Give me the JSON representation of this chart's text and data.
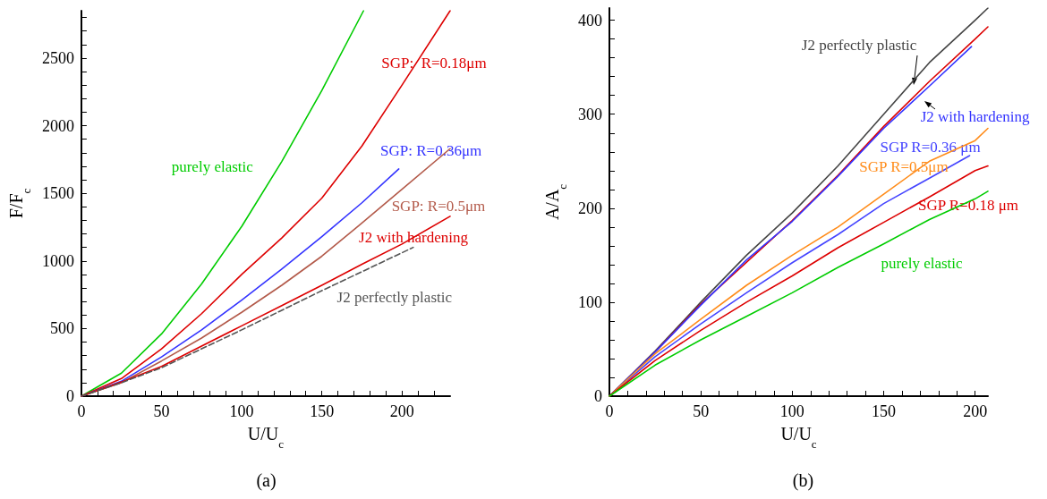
{
  "chart_data": [
    {
      "type": "line",
      "title": "(a)",
      "xlabel": "U/U$_{c}$",
      "ylabel": "F/F$_{c}$",
      "xlim": [
        0,
        230
      ],
      "ylim": [
        0,
        2850
      ],
      "xticks": [
        0,
        {
          "value": 10,
          "label": null
        },
        {
          "value": 20,
          "label": null
        },
        {
          "value": 30,
          "label": null
        },
        {
          "value": 40,
          "label": null
        },
        50,
        {
          "value": 60,
          "label": null
        },
        {
          "value": 70,
          "label": null
        },
        {
          "value": 80,
          "label": null
        },
        {
          "value": 90,
          "label": null
        },
        100,
        {
          "value": 110,
          "label": null
        },
        {
          "value": 120,
          "label": null
        },
        {
          "value": 130,
          "label": null
        },
        {
          "value": 140,
          "label": null
        },
        150,
        {
          "value": 160,
          "label": null
        },
        {
          "value": 170,
          "label": null
        },
        {
          "value": 180,
          "label": null
        },
        {
          "value": 190,
          "label": null
        },
        200,
        {
          "value": 210,
          "label": null
        },
        {
          "value": 220,
          "label": null
        }
      ],
      "yticks": [
        0,
        {
          "value": 100,
          "label": null
        },
        {
          "value": 200,
          "label": null
        },
        {
          "value": 300,
          "label": null
        },
        {
          "value": 400,
          "label": null
        },
        500,
        {
          "value": 600,
          "label": null
        },
        {
          "value": 700,
          "label": null
        },
        {
          "value": 800,
          "label": null
        },
        {
          "value": 900,
          "label": null
        },
        1000,
        {
          "value": 1100,
          "label": null
        },
        {
          "value": 1200,
          "label": null
        },
        {
          "value": 1300,
          "label": null
        },
        {
          "value": 1400,
          "label": null
        },
        1500,
        {
          "value": 1600,
          "label": null
        },
        {
          "value": 1700,
          "label": null
        },
        {
          "value": 1800,
          "label": null
        },
        {
          "value": 1900,
          "label": null
        },
        2000,
        {
          "value": 2100,
          "label": null
        },
        {
          "value": 2200,
          "label": null
        },
        {
          "value": 2300,
          "label": null
        },
        {
          "value": 2400,
          "label": null
        },
        2500,
        {
          "value": 2600,
          "label": null
        },
        {
          "value": 2700,
          "label": null
        },
        {
          "value": 2800,
          "label": null
        }
      ],
      "grid": false,
      "marker": "none",
      "series": [
        {
          "name": "purely elastic",
          "color": "#00cc00",
          "x": [
            0,
            25,
            50,
            75,
            100,
            125,
            150,
            176
          ],
          "values": [
            0,
            170,
            460,
            830,
            1255,
            1735,
            2260,
            2850
          ]
        },
        {
          "name": "SGP:  R=0.18μm",
          "color": "#dd0000",
          "x": [
            0,
            25,
            50,
            75,
            100,
            125,
            150,
            175,
            200,
            230
          ],
          "values": [
            0,
            130,
            350,
            610,
            900,
            1170,
            1465,
            1850,
            2300,
            2850
          ]
        },
        {
          "name": "SGP: R=0.36μm",
          "color": "#3333ff",
          "x": [
            0,
            25,
            50,
            75,
            100,
            125,
            150,
            175,
            198
          ],
          "values": [
            0,
            110,
            290,
            490,
            710,
            940,
            1180,
            1430,
            1680
          ]
        },
        {
          "name": "SGP: R=0.5μm",
          "color": "#b35a4a",
          "x": [
            0,
            25,
            50,
            75,
            100,
            125,
            150,
            175,
            200,
            230
          ],
          "values": [
            0,
            100,
            260,
            430,
            620,
            820,
            1035,
            1280,
            1530,
            1830
          ]
        },
        {
          "name": "J2 with hardening",
          "color": "#dd0000",
          "x": [
            0,
            25,
            50,
            75,
            100,
            125,
            150,
            175,
            200,
            230
          ],
          "values": [
            0,
            105,
            220,
            370,
            520,
            670,
            820,
            975,
            1125,
            1330
          ]
        },
        {
          "name": "J2 perfectly plastic",
          "color": "#555555",
          "line_style": "dashed",
          "x": [
            0,
            25,
            50,
            100,
            150,
            207
          ],
          "values": [
            0,
            100,
            210,
            490,
            780,
            1100
          ]
        }
      ]
    },
    {
      "type": "line",
      "title": "(b)",
      "xlabel": "U/U$_{c}$",
      "ylabel": "A/A$_{c}$",
      "xlim": [
        0,
        207
      ],
      "ylim": [
        0,
        413
      ],
      "xticks": [
        0,
        {
          "value": 10,
          "label": null
        },
        {
          "value": 20,
          "label": null
        },
        {
          "value": 30,
          "label": null
        },
        {
          "value": 40,
          "label": null
        },
        50,
        {
          "value": 60,
          "label": null
        },
        {
          "value": 70,
          "label": null
        },
        {
          "value": 80,
          "label": null
        },
        {
          "value": 90,
          "label": null
        },
        100,
        {
          "value": 110,
          "label": null
        },
        {
          "value": 120,
          "label": null
        },
        {
          "value": 130,
          "label": null
        },
        {
          "value": 140,
          "label": null
        },
        150,
        {
          "value": 160,
          "label": null
        },
        {
          "value": 170,
          "label": null
        },
        {
          "value": 180,
          "label": null
        },
        {
          "value": 190,
          "label": null
        },
        200
      ],
      "yticks": [
        0,
        {
          "value": 20,
          "label": null
        },
        {
          "value": 40,
          "label": null
        },
        {
          "value": 60,
          "label": null
        },
        {
          "value": 80,
          "label": null
        },
        100,
        {
          "value": 120,
          "label": null
        },
        {
          "value": 140,
          "label": null
        },
        {
          "value": 160,
          "label": null
        },
        {
          "value": 180,
          "label": null
        },
        200,
        {
          "value": 220,
          "label": null
        },
        {
          "value": 240,
          "label": null
        },
        {
          "value": 260,
          "label": null
        },
        {
          "value": 280,
          "label": null
        },
        300,
        {
          "value": 320,
          "label": null
        },
        {
          "value": 340,
          "label": null
        },
        {
          "value": 360,
          "label": null
        },
        {
          "value": 380,
          "label": null
        },
        400
      ],
      "grid": false,
      "marker": "none",
      "series": [
        {
          "name": "J2 perfectly plastic",
          "color": "#444444",
          "x": [
            0,
            25,
            50,
            75,
            100,
            125,
            150,
            175,
            200,
            207
          ],
          "values": [
            0,
            48,
            100,
            150,
            195,
            245,
            300,
            355,
            400,
            413
          ]
        },
        {
          "color": "#dd0000",
          "x": [
            0,
            25,
            50,
            75,
            100,
            125,
            150,
            175,
            200,
            207
          ],
          "values": [
            0,
            47,
            98,
            null,
            187,
            235,
            287,
            335,
            380,
            393
          ]
        },
        {
          "name": "J2 with hardening",
          "color": "#3333ff",
          "x": [
            0,
            25,
            50,
            75,
            100,
            125,
            150,
            175,
            198
          ],
          "values": [
            0,
            47,
            97,
            145,
            186,
            234,
            285,
            330,
            372
          ]
        },
        {
          "name": "SGP R=0.36 μm",
          "color": "#4444ff",
          "x": [
            0,
            25,
            50,
            75,
            100,
            125,
            150,
            175,
            197
          ],
          "values": [
            0,
            42,
            77,
            110,
            142,
            172,
            205,
            232,
            256
          ]
        },
        {
          "name": "SGP R=0.5μm",
          "color": "#ff8c1a",
          "x": [
            0,
            25,
            50,
            75,
            100,
            125,
            150,
            175,
            200,
            207
          ],
          "values": [
            0,
            45,
            82,
            118,
            150,
            180,
            215,
            250,
            272,
            285
          ]
        },
        {
          "name": "SGP R=0.18 μm",
          "color": "#dd0000",
          "x": [
            0,
            25,
            50,
            75,
            100,
            125,
            150,
            175,
            200,
            207
          ],
          "values": [
            0,
            38,
            70,
            100,
            128,
            158,
            185,
            212,
            240,
            245
          ]
        },
        {
          "name": "purely elastic",
          "color": "#00cc00",
          "x": [
            0,
            25,
            50,
            75,
            100,
            125,
            150,
            175,
            200,
            207
          ],
          "values": [
            0,
            33,
            60,
            85,
            110,
            137,
            162,
            188,
            210,
            218
          ]
        }
      ]
    }
  ]
}
